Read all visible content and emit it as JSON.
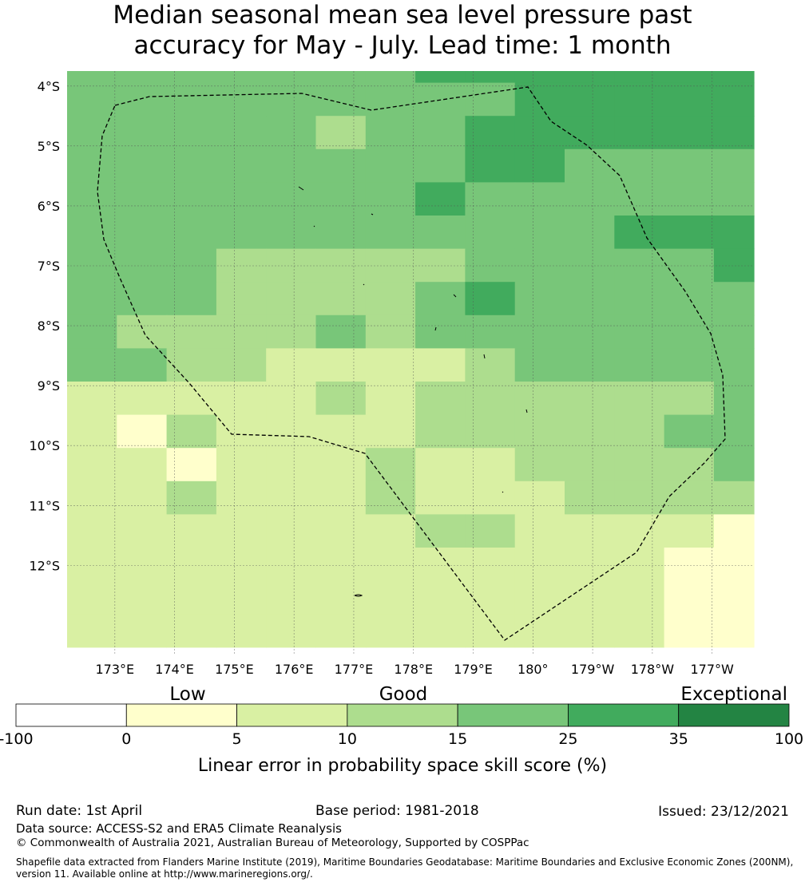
{
  "title_line1": "Median seasonal mean sea level pressure past",
  "title_line2": "accuracy for May - July. Lead time: 1 month",
  "map": {
    "lat_labels": [
      "4°S",
      "5°S",
      "6°S",
      "7°S",
      "8°S",
      "9°S",
      "10°S",
      "11°S",
      "12°S"
    ],
    "lon_labels": [
      "173°E",
      "174°E",
      "175°E",
      "176°E",
      "177°E",
      "178°E",
      "179°E",
      "180°",
      "179°W",
      "178°W",
      "177°W"
    ],
    "extent": {
      "lon": [
        172.2,
        183.7
      ],
      "lat": [
        -3.75,
        -13.5
      ]
    },
    "grid_note": "values are skill-score category indices (1=0-5, 2=5-10, 3=10-15, 4=15-25, 5=25-35)",
    "cells": [
      [
        4,
        4,
        4,
        4,
        4,
        4,
        4,
        5,
        5,
        5,
        5,
        5,
        5,
        5
      ],
      [
        4,
        4,
        4,
        4,
        4,
        4,
        4,
        4,
        4,
        5,
        5,
        5,
        5,
        5
      ],
      [
        4,
        4,
        4,
        4,
        4,
        3,
        4,
        4,
        5,
        5,
        5,
        5,
        5,
        5
      ],
      [
        4,
        4,
        4,
        4,
        4,
        4,
        4,
        4,
        5,
        5,
        4,
        4,
        4,
        4
      ],
      [
        4,
        4,
        4,
        4,
        4,
        4,
        4,
        5,
        4,
        4,
        4,
        4,
        4,
        4
      ],
      [
        4,
        4,
        4,
        4,
        4,
        4,
        4,
        4,
        4,
        4,
        4,
        5,
        5,
        5
      ],
      [
        4,
        4,
        4,
        3,
        3,
        3,
        3,
        3,
        4,
        4,
        4,
        4,
        4,
        5
      ],
      [
        4,
        4,
        4,
        3,
        3,
        3,
        3,
        4,
        5,
        4,
        4,
        4,
        4,
        4
      ],
      [
        4,
        3,
        3,
        3,
        3,
        4,
        3,
        4,
        4,
        4,
        4,
        4,
        4,
        4
      ],
      [
        4,
        4,
        3,
        3,
        2,
        2,
        2,
        2,
        3,
        4,
        4,
        4,
        4,
        4
      ],
      [
        2,
        2,
        2,
        2,
        2,
        3,
        2,
        3,
        3,
        3,
        3,
        3,
        3,
        4
      ],
      [
        2,
        1,
        3,
        2,
        2,
        2,
        2,
        3,
        3,
        3,
        3,
        3,
        4,
        4
      ],
      [
        2,
        2,
        1,
        2,
        2,
        2,
        3,
        2,
        2,
        3,
        3,
        3,
        3,
        4
      ],
      [
        2,
        2,
        3,
        2,
        2,
        2,
        3,
        2,
        2,
        2,
        3,
        3,
        3,
        3
      ],
      [
        2,
        2,
        2,
        2,
        2,
        2,
        2,
        3,
        3,
        2,
        2,
        2,
        2,
        1
      ],
      [
        2,
        2,
        2,
        2,
        2,
        2,
        2,
        2,
        2,
        2,
        2,
        2,
        1,
        1
      ],
      [
        2,
        2,
        2,
        2,
        2,
        2,
        2,
        2,
        2,
        2,
        2,
        2,
        1,
        1
      ],
      [
        2,
        2,
        2,
        2,
        2,
        2,
        2,
        2,
        2,
        2,
        2,
        2,
        1,
        1
      ]
    ]
  },
  "legend": {
    "low_label": "Low",
    "good_label": "Good",
    "exceptional_label": "Exceptional",
    "ticks": [
      "-100",
      "0",
      "5",
      "10",
      "15",
      "25",
      "35",
      "100"
    ],
    "colors": [
      "#ffffff",
      "#ffffcc",
      "#d9f0a3",
      "#addd8e",
      "#78c679",
      "#41ab5d",
      "#238443"
    ],
    "axis_label": "Linear error in probability space skill score (%)"
  },
  "footer": {
    "run_date": "Run date: 1st April",
    "base_period": "Base period: 1981-2018",
    "issued": "Issued: 23/12/2021",
    "data_source": "Data source: ACCESS-S2 and ERA5 Climate Reanalysis",
    "copyright": "© Commonwealth of Australia 2021, Australian Bureau of Meteorology, Supported by COSPPac",
    "shapefile": "Shapefile data extracted from Flanders Marine Institute (2019), Maritime Boundaries Geodatabase: Maritime Boundaries and Exclusive Economic Zones (200NM), version 11. Available online at http://www.marineregions.org/."
  }
}
